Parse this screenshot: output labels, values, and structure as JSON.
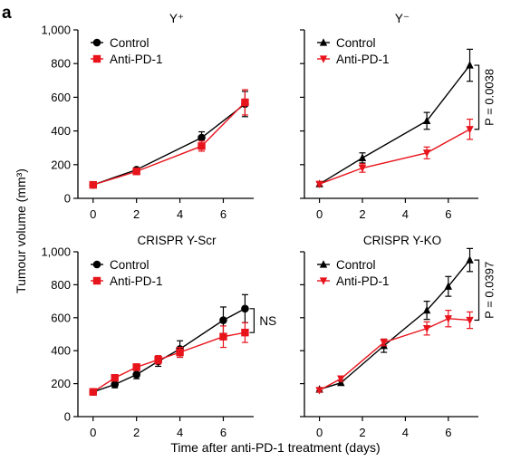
{
  "panel_letter": "a",
  "ylabel": "Tumour volume (mm³)",
  "xlabel": "Time after anti-PD-1 treatment (days)",
  "colors": {
    "control": "#000000",
    "anti_pd1": "#e8141c"
  },
  "chart_data": [
    {
      "type": "line",
      "title": "Y⁺",
      "xlim": [
        -0.7,
        7.4
      ],
      "ylim": [
        0,
        1000
      ],
      "xticks": [
        "0",
        "2",
        "4",
        "6"
      ],
      "xtick_values": [
        0,
        2,
        4,
        6
      ],
      "yticks": [
        "0",
        "200",
        "400",
        "600",
        "800",
        "1,000"
      ],
      "ytick_values": [
        0,
        200,
        400,
        600,
        800,
        1000
      ],
      "show_yticklabels": true,
      "series": [
        {
          "name": "Control",
          "marker": "circle",
          "x": [
            0,
            2,
            5,
            7
          ],
          "y": [
            80,
            170,
            360,
            560
          ],
          "err": [
            8,
            10,
            35,
            75
          ]
        },
        {
          "name": "Anti-PD-1",
          "marker": "square",
          "x": [
            0,
            2,
            5,
            7
          ],
          "y": [
            80,
            160,
            310,
            570
          ],
          "err": [
            8,
            12,
            30,
            75
          ]
        }
      ],
      "legend": "top-left",
      "annotation": null
    },
    {
      "type": "line",
      "title": "Y⁻",
      "xlim": [
        -0.7,
        7.4
      ],
      "ylim": [
        0,
        1000
      ],
      "xticks": [
        "0",
        "2",
        "4",
        "6"
      ],
      "xtick_values": [
        0,
        2,
        4,
        6
      ],
      "yticks": [],
      "ytick_values": [
        0,
        200,
        400,
        600,
        800,
        1000
      ],
      "show_yticklabels": false,
      "series": [
        {
          "name": "Control",
          "marker": "triangle-up",
          "x": [
            0,
            2,
            5,
            7
          ],
          "y": [
            85,
            240,
            460,
            790
          ],
          "err": [
            10,
            30,
            50,
            95
          ]
        },
        {
          "name": "Anti-PD-1",
          "marker": "triangle-down",
          "x": [
            0,
            2,
            5,
            7
          ],
          "y": [
            85,
            180,
            270,
            410
          ],
          "err": [
            10,
            25,
            35,
            60
          ]
        }
      ],
      "legend": "top-left",
      "annotation": {
        "text": "P = 0.0038",
        "y_top": 790,
        "y_bottom": 410,
        "vertical": true
      }
    },
    {
      "type": "line",
      "title": "CRISPR Y-Scr",
      "xlim": [
        -0.7,
        7.4
      ],
      "ylim": [
        0,
        1000
      ],
      "xticks": [
        "0",
        "2",
        "4",
        "6"
      ],
      "xtick_values": [
        0,
        2,
        4,
        6
      ],
      "yticks": [
        "0",
        "200",
        "400",
        "600",
        "800",
        "1,000"
      ],
      "ytick_values": [
        0,
        200,
        400,
        600,
        800,
        1000
      ],
      "show_yticklabels": true,
      "series": [
        {
          "name": "Control",
          "marker": "circle",
          "x": [
            0,
            1,
            2,
            3,
            4,
            6,
            7
          ],
          "y": [
            150,
            195,
            255,
            335,
            410,
            585,
            655
          ],
          "err": [
            10,
            20,
            25,
            30,
            50,
            80,
            85
          ]
        },
        {
          "name": "Anti-PD-1",
          "marker": "square",
          "x": [
            0,
            1,
            2,
            3,
            4,
            6,
            7
          ],
          "y": [
            150,
            235,
            300,
            345,
            390,
            485,
            510
          ],
          "err": [
            10,
            15,
            20,
            25,
            30,
            65,
            60
          ]
        }
      ],
      "legend": "top-left",
      "annotation": {
        "text": "NS",
        "y_top": 655,
        "y_bottom": 510,
        "vertical": false
      }
    },
    {
      "type": "line",
      "title": "CRISPR Y-KO",
      "xlim": [
        -0.7,
        7.4
      ],
      "ylim": [
        0,
        1000
      ],
      "xticks": [
        "0",
        "2",
        "4",
        "6"
      ],
      "xtick_values": [
        0,
        2,
        4,
        6
      ],
      "yticks": [],
      "ytick_values": [
        0,
        200,
        400,
        600,
        800,
        1000
      ],
      "show_yticklabels": false,
      "series": [
        {
          "name": "Control",
          "marker": "triangle-up",
          "x": [
            0,
            1,
            3,
            5,
            6,
            7
          ],
          "y": [
            165,
            205,
            430,
            645,
            790,
            950
          ],
          "err": [
            10,
            15,
            40,
            55,
            60,
            70
          ]
        },
        {
          "name": "Anti-PD-1",
          "marker": "triangle-down",
          "x": [
            0,
            1,
            3,
            5,
            6,
            7
          ],
          "y": [
            160,
            230,
            450,
            535,
            595,
            585
          ],
          "err": [
            10,
            15,
            20,
            40,
            50,
            50
          ]
        }
      ],
      "legend": "top-left",
      "annotation": {
        "text": "P = 0.0397",
        "y_top": 950,
        "y_bottom": 585,
        "vertical": true
      }
    }
  ]
}
